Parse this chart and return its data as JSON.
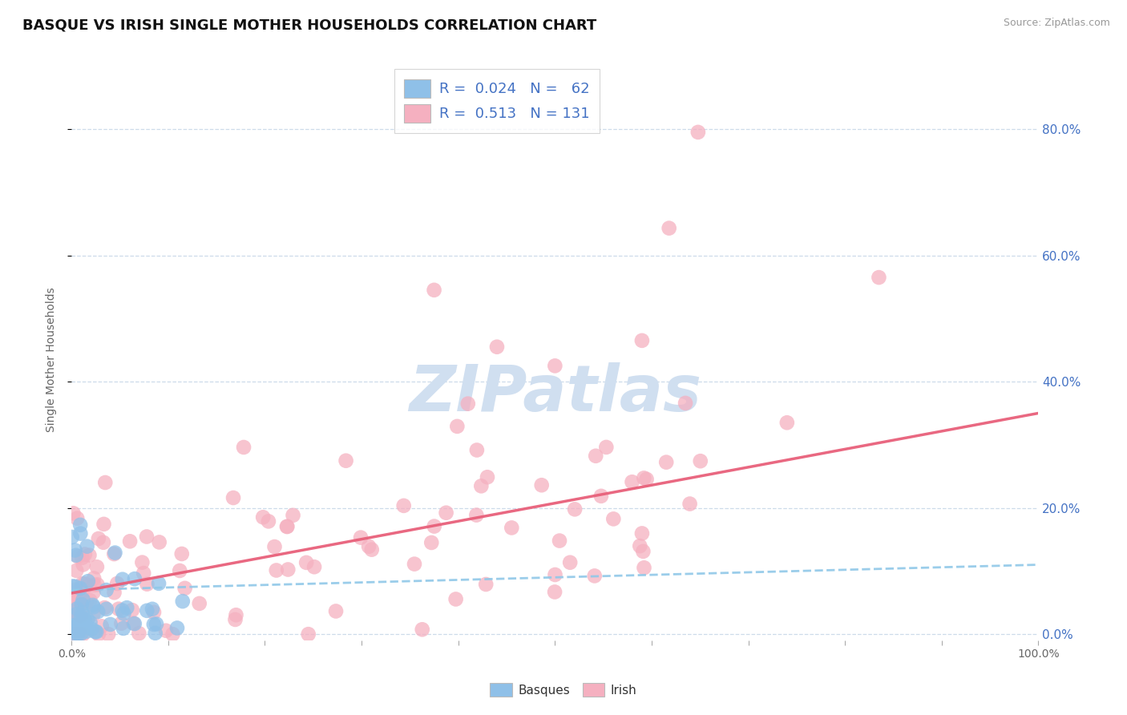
{
  "title": "BASQUE VS IRISH SINGLE MOTHER HOUSEHOLDS CORRELATION CHART",
  "source": "Source: ZipAtlas.com",
  "ylabel": "Single Mother Households",
  "xlim": [
    0.0,
    1.0
  ],
  "ylim": [
    -0.01,
    0.88
  ],
  "xticks": [
    0.0,
    0.1,
    0.2,
    0.3,
    0.4,
    0.5,
    0.6,
    0.7,
    0.8,
    0.9,
    1.0
  ],
  "xticklabels": [
    "0.0%",
    "",
    "",
    "",
    "",
    "",
    "",
    "",
    "",
    "",
    "100.0%"
  ],
  "yticks": [
    0.0,
    0.2,
    0.4,
    0.6,
    0.8
  ],
  "yticklabels_right": [
    "0.0%",
    "20.0%",
    "40.0%",
    "60.0%",
    "80.0%"
  ],
  "basque_color": "#8fc0e8",
  "irish_color": "#f5b0c0",
  "basque_R": 0.024,
  "basque_N": 62,
  "irish_R": 0.513,
  "irish_N": 131,
  "basque_line_color": "#90c8e8",
  "irish_line_color": "#e8607a",
  "legend_text_color": "#4472c4",
  "watermark": "ZIPatlas",
  "watermark_color": "#d0dff0",
  "background_color": "#ffffff",
  "grid_color": "#c8d8e8",
  "title_fontsize": 13,
  "axis_fontsize": 10,
  "legend_fontsize": 13,
  "source_fontsize": 9
}
